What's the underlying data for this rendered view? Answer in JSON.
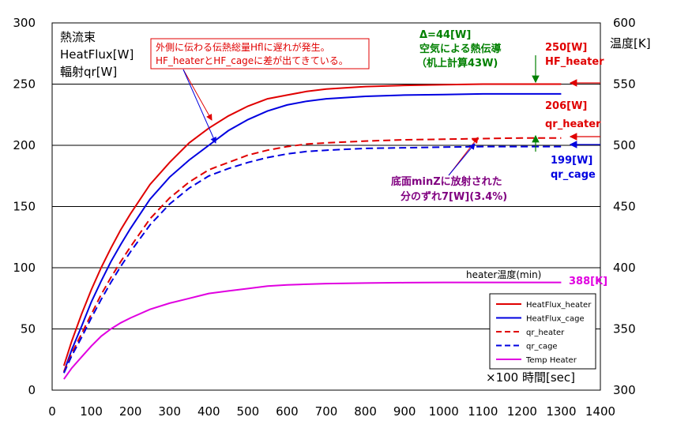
{
  "chart_data": {
    "type": "line",
    "title_lines": [
      "熱流束",
      "HeatFlux[W]",
      "輻射qr[W]"
    ],
    "y2label": "温度[K]",
    "xlabel": "×100 時間[sec]",
    "xlim": [
      0,
      1400
    ],
    "ylim": [
      0,
      300
    ],
    "y2lim": [
      300,
      600
    ],
    "x_ticks": [
      0,
      100,
      200,
      300,
      400,
      500,
      600,
      700,
      800,
      900,
      1000,
      1100,
      1200,
      1300,
      1400
    ],
    "y_ticks": [
      0,
      50,
      100,
      150,
      200,
      250,
      300
    ],
    "y2_ticks": [
      300,
      350,
      400,
      450,
      500,
      550,
      600
    ],
    "gridlines_y": [
      50,
      100,
      150,
      200,
      250
    ],
    "series": [
      {
        "name": "HeatFlux_heater",
        "axis": "left",
        "color": "#e00000",
        "dash": false,
        "x": [
          30,
          50,
          75,
          100,
          125,
          150,
          175,
          200,
          250,
          300,
          350,
          400,
          450,
          500,
          550,
          600,
          650,
          700,
          800,
          900,
          1000,
          1100,
          1200,
          1300
        ],
        "y": [
          20,
          40,
          62,
          82,
          100,
          116,
          131,
          144,
          168,
          186,
          202,
          214,
          224,
          232,
          238,
          241,
          244,
          246,
          248,
          249,
          249.5,
          250,
          250,
          250
        ]
      },
      {
        "name": "HeatFlux_cage",
        "axis": "left",
        "color": "#0000e0",
        "dash": false,
        "x": [
          30,
          50,
          75,
          100,
          125,
          150,
          175,
          200,
          250,
          300,
          350,
          400,
          450,
          500,
          550,
          600,
          650,
          700,
          800,
          900,
          1000,
          1100,
          1200,
          1300
        ],
        "y": [
          15,
          33,
          52,
          72,
          89,
          105,
          119,
          132,
          156,
          174,
          188,
          200,
          212,
          221,
          228,
          233,
          236,
          238,
          240,
          241,
          241.5,
          242,
          242,
          242
        ]
      },
      {
        "name": "qr_heater",
        "axis": "left",
        "color": "#e00000",
        "dash": true,
        "x": [
          30,
          50,
          75,
          100,
          125,
          150,
          175,
          200,
          250,
          300,
          350,
          400,
          450,
          500,
          550,
          600,
          650,
          700,
          800,
          900,
          1000,
          1100,
          1200,
          1300
        ],
        "y": [
          15,
          30,
          46,
          62,
          78,
          92,
          105,
          117,
          140,
          157,
          170,
          180,
          186,
          192,
          196,
          199,
          201,
          202,
          203.5,
          204.5,
          205,
          205.5,
          206,
          206
        ]
      },
      {
        "name": "qr_cage",
        "axis": "left",
        "color": "#0000e0",
        "dash": true,
        "x": [
          30,
          50,
          75,
          100,
          125,
          150,
          175,
          200,
          250,
          300,
          350,
          400,
          450,
          500,
          550,
          600,
          650,
          700,
          800,
          900,
          1000,
          1100,
          1200,
          1300
        ],
        "y": [
          14,
          28,
          43,
          59,
          74,
          88,
          101,
          113,
          135,
          152,
          165,
          175,
          181,
          186,
          190,
          193,
          195,
          196,
          197.5,
          198,
          198.5,
          199,
          199,
          199
        ]
      },
      {
        "name": "Temp Heater",
        "axis": "right",
        "color": "#e000e0",
        "dash": false,
        "x": [
          30,
          50,
          75,
          100,
          125,
          150,
          175,
          200,
          250,
          300,
          350,
          400,
          450,
          500,
          550,
          600,
          650,
          700,
          800,
          900,
          1000,
          1100,
          1200,
          1300
        ],
        "y": [
          309,
          318,
          327,
          336,
          344,
          350,
          355,
          359,
          366,
          371,
          375,
          379,
          381,
          383,
          385,
          386,
          386.5,
          387,
          387.5,
          387.8,
          388,
          388,
          388,
          388
        ]
      }
    ],
    "legend": {
      "position": "bottom-right",
      "entries": [
        "HeatFlux_heater",
        "HeatFlux_cage",
        "qr_heater",
        "qr_cage",
        "Temp Heater"
      ]
    },
    "annotations": {
      "note_box": [
        "外側に伝わる伝熱総量Hflに遅れが発生。",
        "HF_heaterとHF_cageに差が出てきている。"
      ],
      "delta": [
        "Δ=44[W]",
        "空気による熱伝導",
        "（机上計算43W)"
      ],
      "hf_heater_value": "250[W]",
      "hf_heater_name": "HF_heater",
      "qr_heater_value": "206[W]",
      "qr_heater_name": "qr_heater",
      "qr_cage_value": "199[W]",
      "qr_cage_name": "qr_cage",
      "radiation_note": [
        "底面minZに放射された",
        "分のずれ7[W](3.4%)"
      ],
      "heater_temp_label": "heater温度(min)",
      "heater_temp_value": "388[K]"
    },
    "colors": {
      "heater": "#e00000",
      "cage": "#0000e0",
      "temp": "#e000e0",
      "delta": "#008000",
      "radiation": "#800080"
    }
  }
}
